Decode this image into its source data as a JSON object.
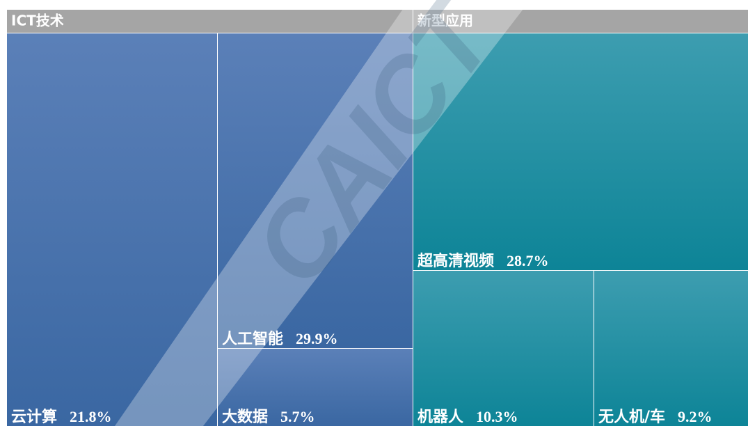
{
  "chart_data": {
    "type": "treemap",
    "groups": [
      {
        "name": "ICT技术",
        "categories": [
          "云计算",
          "人工智能",
          "大数据"
        ],
        "values": [
          21.8,
          29.9,
          5.7
        ],
        "value_labels": [
          "21.8%",
          "29.9%",
          "5.7%"
        ]
      },
      {
        "name": "新型应用",
        "categories": [
          "超高清视频",
          "机器人",
          "无人机/车"
        ],
        "values": [
          28.7,
          10.3,
          9.2
        ],
        "value_labels": [
          "28.7%",
          "10.3%",
          "9.2%"
        ]
      }
    ],
    "watermark": "CAICT"
  }
}
